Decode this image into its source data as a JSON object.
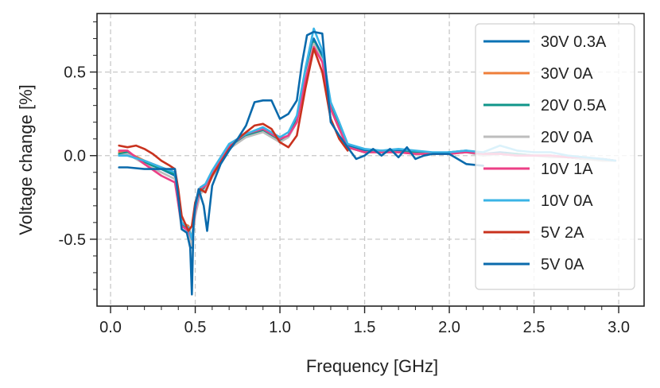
{
  "chart_data": {
    "type": "line",
    "title": "",
    "xlabel": "Frequency [GHz]",
    "ylabel": "Voltage change [%]",
    "xlim": [
      -0.08,
      3.15
    ],
    "ylim": [
      -0.9,
      0.85
    ],
    "xticks": [
      0.0,
      0.5,
      1.0,
      1.5,
      2.0,
      2.5,
      3.0
    ],
    "xtick_labels": [
      "0.0",
      "0.5",
      "1.0",
      "1.5",
      "2.0",
      "2.5",
      "3.0"
    ],
    "yticks": [
      0.5,
      0.0,
      -0.5
    ],
    "ytick_labels": [
      "0.5",
      "0.0",
      "-0.5"
    ],
    "grid": true,
    "legend_position": "top-right",
    "series": [
      {
        "name": "30V 0.3A",
        "color": "#0a72b4",
        "x": [
          0.05,
          0.1,
          0.2,
          0.3,
          0.38,
          0.42,
          0.46,
          0.48,
          0.5,
          0.53,
          0.56,
          0.6,
          0.7,
          0.8,
          0.9,
          1.0,
          1.05,
          1.1,
          1.15,
          1.2,
          1.25,
          1.3,
          1.35,
          1.4,
          1.5,
          1.6,
          1.7,
          1.8,
          1.9,
          2.0,
          2.1,
          2.2,
          2.3,
          2.4,
          2.5,
          2.6,
          2.7,
          2.8,
          2.9,
          2.98
        ],
        "y": [
          0.0,
          0.01,
          -0.04,
          -0.08,
          -0.12,
          -0.42,
          -0.45,
          -0.55,
          -0.34,
          -0.22,
          -0.2,
          -0.12,
          0.05,
          0.12,
          0.15,
          0.08,
          0.12,
          0.22,
          0.48,
          0.7,
          0.6,
          0.3,
          0.18,
          0.06,
          0.03,
          0.03,
          0.03,
          0.02,
          0.01,
          0.02,
          0.03,
          0.01,
          0.02,
          0.01,
          0.0,
          0.0,
          -0.01,
          -0.02,
          -0.02,
          -0.03
        ]
      },
      {
        "name": "30V 0A",
        "color": "#ef7f3a",
        "x": [
          0.05,
          0.1,
          0.2,
          0.3,
          0.38,
          0.42,
          0.46,
          0.48,
          0.5,
          0.53,
          0.56,
          0.6,
          0.7,
          0.8,
          0.9,
          1.0,
          1.05,
          1.1,
          1.15,
          1.2,
          1.25,
          1.3,
          1.35,
          1.4,
          1.5,
          1.6,
          1.7,
          1.8,
          1.9,
          2.0,
          2.1,
          2.2,
          2.3,
          2.4,
          2.5,
          2.6,
          2.7,
          2.8,
          2.9,
          2.98
        ],
        "y": [
          0.02,
          0.02,
          -0.03,
          -0.07,
          -0.1,
          -0.4,
          -0.42,
          -0.5,
          -0.32,
          -0.2,
          -0.18,
          -0.1,
          0.06,
          0.12,
          0.16,
          0.09,
          0.12,
          0.2,
          0.46,
          0.66,
          0.57,
          0.28,
          0.16,
          0.05,
          0.02,
          0.02,
          0.02,
          0.02,
          0.01,
          0.01,
          0.02,
          0.01,
          0.01,
          0.0,
          0.0,
          0.0,
          -0.01,
          -0.02,
          -0.02,
          -0.03
        ]
      },
      {
        "name": "20V 0.5A",
        "color": "#10968a",
        "x": [
          0.05,
          0.1,
          0.2,
          0.3,
          0.38,
          0.42,
          0.46,
          0.48,
          0.5,
          0.53,
          0.56,
          0.6,
          0.7,
          0.8,
          0.9,
          1.0,
          1.05,
          1.1,
          1.15,
          1.2,
          1.25,
          1.3,
          1.35,
          1.4,
          1.5,
          1.6,
          1.7,
          1.8,
          1.9,
          2.0,
          2.1,
          2.2,
          2.3,
          2.4,
          2.5,
          2.6,
          2.7,
          2.8,
          2.9,
          2.98
        ],
        "y": [
          0.01,
          0.02,
          -0.04,
          -0.08,
          -0.11,
          -0.41,
          -0.44,
          -0.52,
          -0.33,
          -0.21,
          -0.19,
          -0.11,
          0.05,
          0.12,
          0.15,
          0.09,
          0.12,
          0.21,
          0.47,
          0.68,
          0.58,
          0.29,
          0.17,
          0.05,
          0.02,
          0.03,
          0.02,
          0.02,
          0.01,
          0.02,
          0.02,
          0.01,
          0.01,
          0.01,
          0.0,
          0.0,
          -0.01,
          -0.02,
          -0.02,
          -0.03
        ]
      },
      {
        "name": "20V 0A",
        "color": "#bdbdbd",
        "x": [
          0.05,
          0.1,
          0.2,
          0.3,
          0.38,
          0.42,
          0.46,
          0.48,
          0.5,
          0.53,
          0.56,
          0.6,
          0.7,
          0.8,
          0.9,
          1.0,
          1.05,
          1.1,
          1.15,
          1.2,
          1.25,
          1.3,
          1.35,
          1.4,
          1.5,
          1.6,
          1.7,
          1.8,
          1.9,
          2.0,
          2.1,
          2.2,
          2.3,
          2.4,
          2.5,
          2.6,
          2.7,
          2.8,
          2.9,
          2.98
        ],
        "y": [
          0.0,
          0.01,
          -0.05,
          -0.1,
          -0.14,
          -0.44,
          -0.47,
          -0.54,
          -0.36,
          -0.23,
          -0.2,
          -0.13,
          0.04,
          0.11,
          0.14,
          0.08,
          0.11,
          0.2,
          0.46,
          0.67,
          0.57,
          0.28,
          0.16,
          0.05,
          0.02,
          0.02,
          0.02,
          0.01,
          0.01,
          0.01,
          0.02,
          0.0,
          0.01,
          0.0,
          0.0,
          -0.01,
          -0.01,
          -0.02,
          -0.03,
          -0.03
        ]
      },
      {
        "name": "10V 1A",
        "color": "#ec3f86",
        "x": [
          0.05,
          0.1,
          0.2,
          0.3,
          0.38,
          0.42,
          0.46,
          0.48,
          0.5,
          0.53,
          0.56,
          0.6,
          0.7,
          0.8,
          0.9,
          1.0,
          1.05,
          1.1,
          1.15,
          1.2,
          1.25,
          1.3,
          1.35,
          1.4,
          1.5,
          1.6,
          1.7,
          1.8,
          1.9,
          2.0,
          2.1,
          2.2,
          2.3,
          2.4,
          2.5,
          2.6,
          2.7,
          2.8,
          2.9,
          2.98
        ],
        "y": [
          0.03,
          0.03,
          -0.05,
          -0.12,
          -0.16,
          -0.42,
          -0.45,
          -0.5,
          -0.33,
          -0.2,
          -0.18,
          -0.1,
          0.06,
          0.13,
          0.16,
          0.1,
          0.12,
          0.2,
          0.45,
          0.65,
          0.56,
          0.28,
          0.16,
          0.05,
          0.02,
          0.02,
          0.02,
          0.01,
          0.01,
          0.01,
          0.02,
          0.01,
          0.01,
          0.0,
          0.0,
          0.0,
          -0.01,
          -0.01,
          -0.02,
          -0.03
        ]
      },
      {
        "name": "10V 0A",
        "color": "#3ab4e6",
        "x": [
          0.05,
          0.1,
          0.2,
          0.3,
          0.38,
          0.42,
          0.46,
          0.48,
          0.5,
          0.53,
          0.56,
          0.6,
          0.7,
          0.8,
          0.9,
          1.0,
          1.05,
          1.1,
          1.15,
          1.2,
          1.25,
          1.3,
          1.35,
          1.4,
          1.5,
          1.6,
          1.7,
          1.8,
          1.9,
          2.0,
          2.1,
          2.2,
          2.3,
          2.4,
          2.5,
          2.6,
          2.7,
          2.8,
          2.9,
          2.98
        ],
        "y": [
          0.0,
          0.0,
          -0.03,
          -0.07,
          -0.1,
          -0.4,
          -0.43,
          -0.5,
          -0.31,
          -0.19,
          -0.17,
          -0.09,
          0.07,
          0.13,
          0.17,
          0.11,
          0.14,
          0.24,
          0.52,
          0.76,
          0.63,
          0.32,
          0.2,
          0.07,
          0.04,
          0.03,
          0.04,
          0.03,
          0.02,
          0.02,
          0.03,
          0.02,
          0.06,
          0.03,
          0.02,
          0.02,
          0.0,
          -0.01,
          -0.02,
          -0.03
        ]
      },
      {
        "name": "5V 2A",
        "color": "#c9321e",
        "x": [
          0.05,
          0.1,
          0.15,
          0.2,
          0.25,
          0.3,
          0.35,
          0.38,
          0.4,
          0.42,
          0.46,
          0.48,
          0.5,
          0.53,
          0.56,
          0.6,
          0.65,
          0.7,
          0.75,
          0.8,
          0.85,
          0.9,
          0.95,
          1.0,
          1.05,
          1.1,
          1.15,
          1.2,
          1.25,
          1.3,
          1.35,
          1.4
        ],
        "y": [
          0.06,
          0.05,
          0.06,
          0.04,
          0.01,
          -0.03,
          -0.06,
          -0.08,
          -0.2,
          -0.36,
          -0.45,
          -0.42,
          -0.28,
          -0.2,
          -0.22,
          -0.12,
          -0.04,
          0.04,
          0.1,
          0.14,
          0.18,
          0.19,
          0.16,
          0.08,
          0.05,
          0.12,
          0.4,
          0.64,
          0.5,
          0.22,
          0.1,
          0.03
        ]
      },
      {
        "name": "5V 0A",
        "color": "#0a6aac",
        "x": [
          0.05,
          0.1,
          0.2,
          0.3,
          0.38,
          0.4,
          0.42,
          0.45,
          0.47,
          0.48,
          0.49,
          0.5,
          0.52,
          0.55,
          0.57,
          0.6,
          0.65,
          0.7,
          0.75,
          0.8,
          0.85,
          0.9,
          0.95,
          1.0,
          1.05,
          1.1,
          1.13,
          1.16,
          1.2,
          1.25,
          1.3,
          1.35,
          1.4,
          1.45,
          1.5,
          1.55,
          1.6,
          1.65,
          1.7,
          1.75,
          1.8,
          1.85,
          1.9,
          2.0,
          2.1,
          2.2
        ],
        "y": [
          -0.07,
          -0.07,
          -0.08,
          -0.08,
          -0.08,
          -0.25,
          -0.44,
          -0.46,
          -0.55,
          -0.83,
          -0.4,
          -0.3,
          -0.2,
          -0.3,
          -0.45,
          -0.18,
          -0.05,
          0.03,
          0.1,
          0.18,
          0.32,
          0.33,
          0.33,
          0.22,
          0.25,
          0.33,
          0.55,
          0.72,
          0.74,
          0.73,
          0.2,
          0.12,
          0.05,
          -0.02,
          0.0,
          0.04,
          0.0,
          0.04,
          -0.01,
          0.05,
          -0.02,
          0.0,
          0.01,
          0.01,
          -0.05,
          -0.06
        ]
      }
    ]
  }
}
